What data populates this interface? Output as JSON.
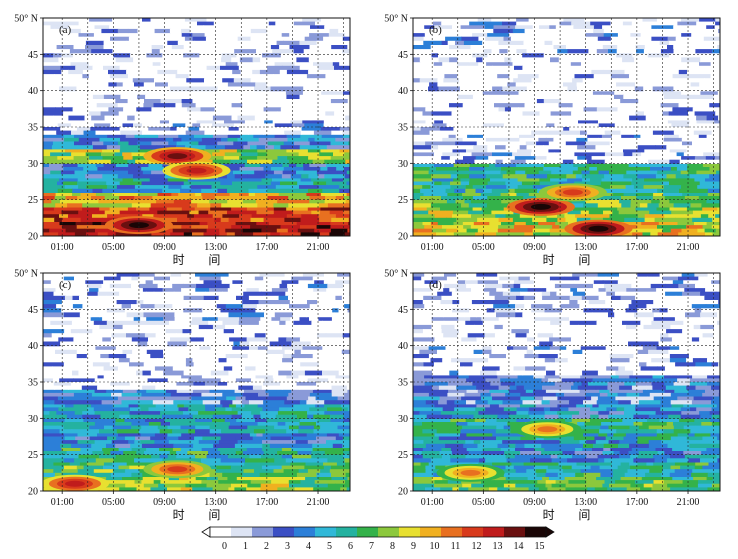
{
  "chart_data": {
    "type": "heatmap",
    "panels": [
      {
        "label": "(a)",
        "bands": [
          {
            "lat": [
              20,
              22
            ],
            "v": 13
          },
          {
            "lat": [
              22,
              24
            ],
            "v": 12
          },
          {
            "lat": [
              24,
              26
            ],
            "v": 10
          },
          {
            "lat": [
              26,
              28
            ],
            "v": 5
          },
          {
            "lat": [
              28,
              30
            ],
            "v": 4
          },
          {
            "lat": [
              30,
              32
            ],
            "v": 8
          },
          {
            "lat": [
              32,
              34
            ],
            "v": 4
          },
          {
            "lat": [
              34,
              36
            ],
            "v": 2
          },
          {
            "lat": [
              36,
              40
            ],
            "v": 1
          },
          {
            "lat": [
              40,
              44
            ],
            "v": 1
          },
          {
            "lat": [
              44,
              48
            ],
            "v": 1
          },
          {
            "lat": [
              48,
              50
            ],
            "v": 1
          }
        ]
      },
      {
        "label": "(b)",
        "bands": [
          {
            "lat": [
              20,
              22
            ],
            "v": 9
          },
          {
            "lat": [
              22,
              24
            ],
            "v": 8
          },
          {
            "lat": [
              24,
              26
            ],
            "v": 7
          },
          {
            "lat": [
              26,
              28
            ],
            "v": 6
          },
          {
            "lat": [
              28,
              30
            ],
            "v": 6
          },
          {
            "lat": [
              30,
              32
            ],
            "v": 2
          },
          {
            "lat": [
              32,
              34
            ],
            "v": 2
          },
          {
            "lat": [
              34,
              36
            ],
            "v": 1
          },
          {
            "lat": [
              36,
              40
            ],
            "v": 1
          },
          {
            "lat": [
              40,
              44
            ],
            "v": 1
          },
          {
            "lat": [
              44,
              48
            ],
            "v": 2
          },
          {
            "lat": [
              48,
              50
            ],
            "v": 2
          }
        ]
      },
      {
        "label": "(c)",
        "bands": [
          {
            "lat": [
              20,
              22
            ],
            "v": 8
          },
          {
            "lat": [
              22,
              24
            ],
            "v": 7
          },
          {
            "lat": [
              24,
              26
            ],
            "v": 6
          },
          {
            "lat": [
              26,
              28
            ],
            "v": 4
          },
          {
            "lat": [
              28,
              30
            ],
            "v": 5
          },
          {
            "lat": [
              30,
              32
            ],
            "v": 5
          },
          {
            "lat": [
              32,
              34
            ],
            "v": 3
          },
          {
            "lat": [
              34,
              36
            ],
            "v": 1
          },
          {
            "lat": [
              36,
              40
            ],
            "v": 1
          },
          {
            "lat": [
              40,
              44
            ],
            "v": 2
          },
          {
            "lat": [
              44,
              48
            ],
            "v": 2
          },
          {
            "lat": [
              48,
              50
            ],
            "v": 2
          }
        ]
      },
      {
        "label": "(d)",
        "bands": [
          {
            "lat": [
              20,
              22
            ],
            "v": 7
          },
          {
            "lat": [
              22,
              24
            ],
            "v": 6
          },
          {
            "lat": [
              24,
              26
            ],
            "v": 4
          },
          {
            "lat": [
              26,
              28
            ],
            "v": 5
          },
          {
            "lat": [
              28,
              30
            ],
            "v": 6
          },
          {
            "lat": [
              30,
              32
            ],
            "v": 4
          },
          {
            "lat": [
              32,
              34
            ],
            "v": 3
          },
          {
            "lat": [
              34,
              36
            ],
            "v": 3
          },
          {
            "lat": [
              36,
              40
            ],
            "v": 2
          },
          {
            "lat": [
              40,
              44
            ],
            "v": 1
          },
          {
            "lat": [
              44,
              48
            ],
            "v": 2
          },
          {
            "lat": [
              48,
              50
            ],
            "v": 2
          }
        ]
      }
    ],
    "hotspots": [
      {
        "panel": 0,
        "time": "10:00",
        "lat": 31,
        "v": 14
      },
      {
        "panel": 0,
        "time": "07:00",
        "lat": 21.5,
        "v": 15
      },
      {
        "panel": 0,
        "time": "11:30",
        "lat": 29,
        "v": 13
      },
      {
        "panel": 1,
        "time": "09:30",
        "lat": 24,
        "v": 15
      },
      {
        "panel": 1,
        "time": "14:00",
        "lat": 21,
        "v": 15
      },
      {
        "panel": 1,
        "time": "12:00",
        "lat": 26,
        "v": 12
      },
      {
        "panel": 2,
        "time": "10:00",
        "lat": 23,
        "v": 12
      },
      {
        "panel": 2,
        "time": "02:00",
        "lat": 21,
        "v": 13
      },
      {
        "panel": 3,
        "time": "10:00",
        "lat": 28.5,
        "v": 11
      },
      {
        "panel": 3,
        "time": "04:00",
        "lat": 22.5,
        "v": 11
      }
    ],
    "time_ticks": [
      "01:00",
      "05:00",
      "09:00",
      "13:00",
      "17:00",
      "21:00"
    ],
    "lat_ticks": [
      20,
      25,
      30,
      35,
      40,
      45,
      50
    ],
    "lat_top_label": "50° N",
    "ylim": [
      20,
      50
    ],
    "xlabel": "时   间",
    "colorbar": {
      "ticks": [
        0,
        1,
        2,
        3,
        4,
        5,
        6,
        7,
        8,
        9,
        10,
        11,
        12,
        13,
        14,
        15
      ],
      "colors": [
        "#ffffff",
        "#dde4f4",
        "#8a9ad8",
        "#3b4fc4",
        "#2c7fd8",
        "#30b8d8",
        "#24b2a0",
        "#34b24a",
        "#8cc83c",
        "#e8e030",
        "#f0b020",
        "#e87020",
        "#d83a1c",
        "#c01c1c",
        "#6a1010",
        "#1a0606"
      ]
    }
  }
}
